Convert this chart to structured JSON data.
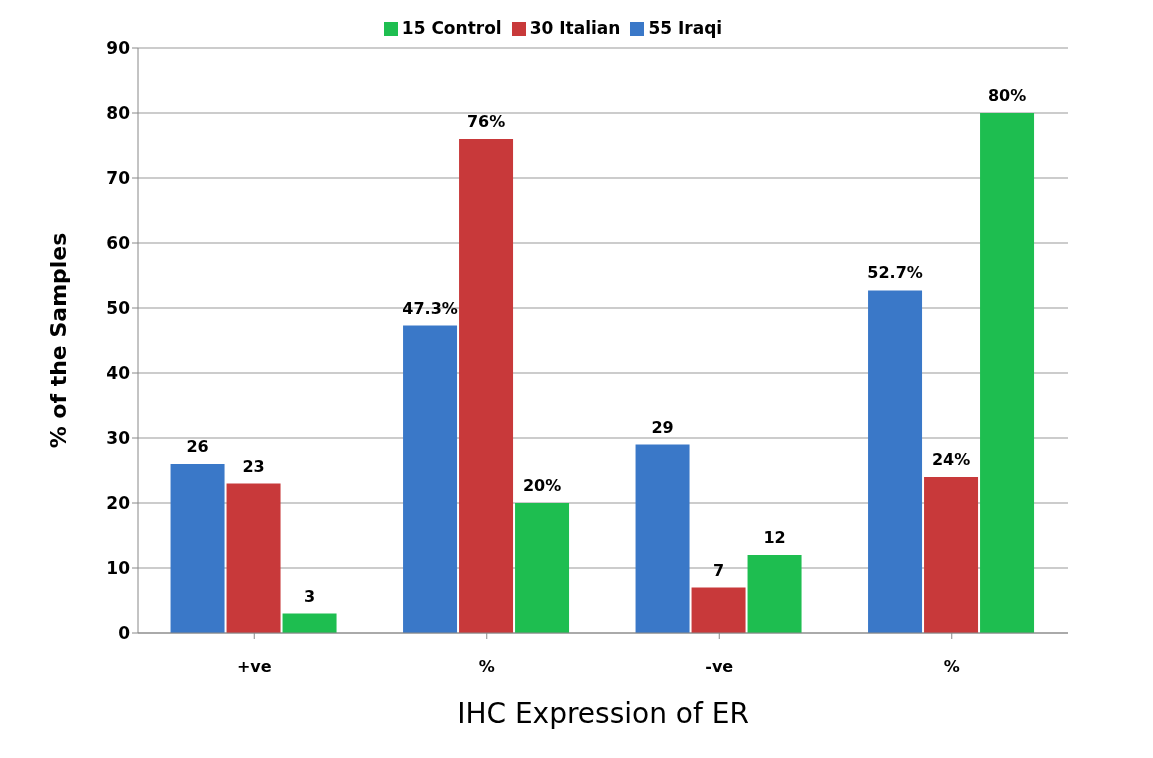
{
  "chart_data": {
    "type": "bar",
    "xlabel": "IHC Expression of ER",
    "ylabel": "% of the Samples",
    "categories": [
      "+ve",
      "%",
      "-ve",
      "%"
    ],
    "series": [
      {
        "name": "55 Iraqi",
        "color": "#3a78c8",
        "values": [
          26,
          47.3,
          29,
          52.7
        ],
        "value_labels": [
          "26",
          "47.3%",
          "29",
          "52.7%"
        ]
      },
      {
        "name": "30 Italian",
        "color": "#c8393a",
        "values": [
          23,
          76,
          7,
          24
        ],
        "value_labels": [
          "23",
          "76%",
          "7",
          "24%"
        ]
      },
      {
        "name": "15 Control",
        "color": "#1ebe50",
        "values": [
          3,
          20,
          12,
          80
        ],
        "value_labels": [
          "3",
          "20%",
          "12",
          "80%"
        ]
      }
    ],
    "ylim": [
      0,
      90
    ],
    "yticks": [
      0,
      10,
      20,
      30,
      40,
      50,
      60,
      70,
      80,
      90
    ],
    "grid": "y",
    "legend": "top"
  }
}
